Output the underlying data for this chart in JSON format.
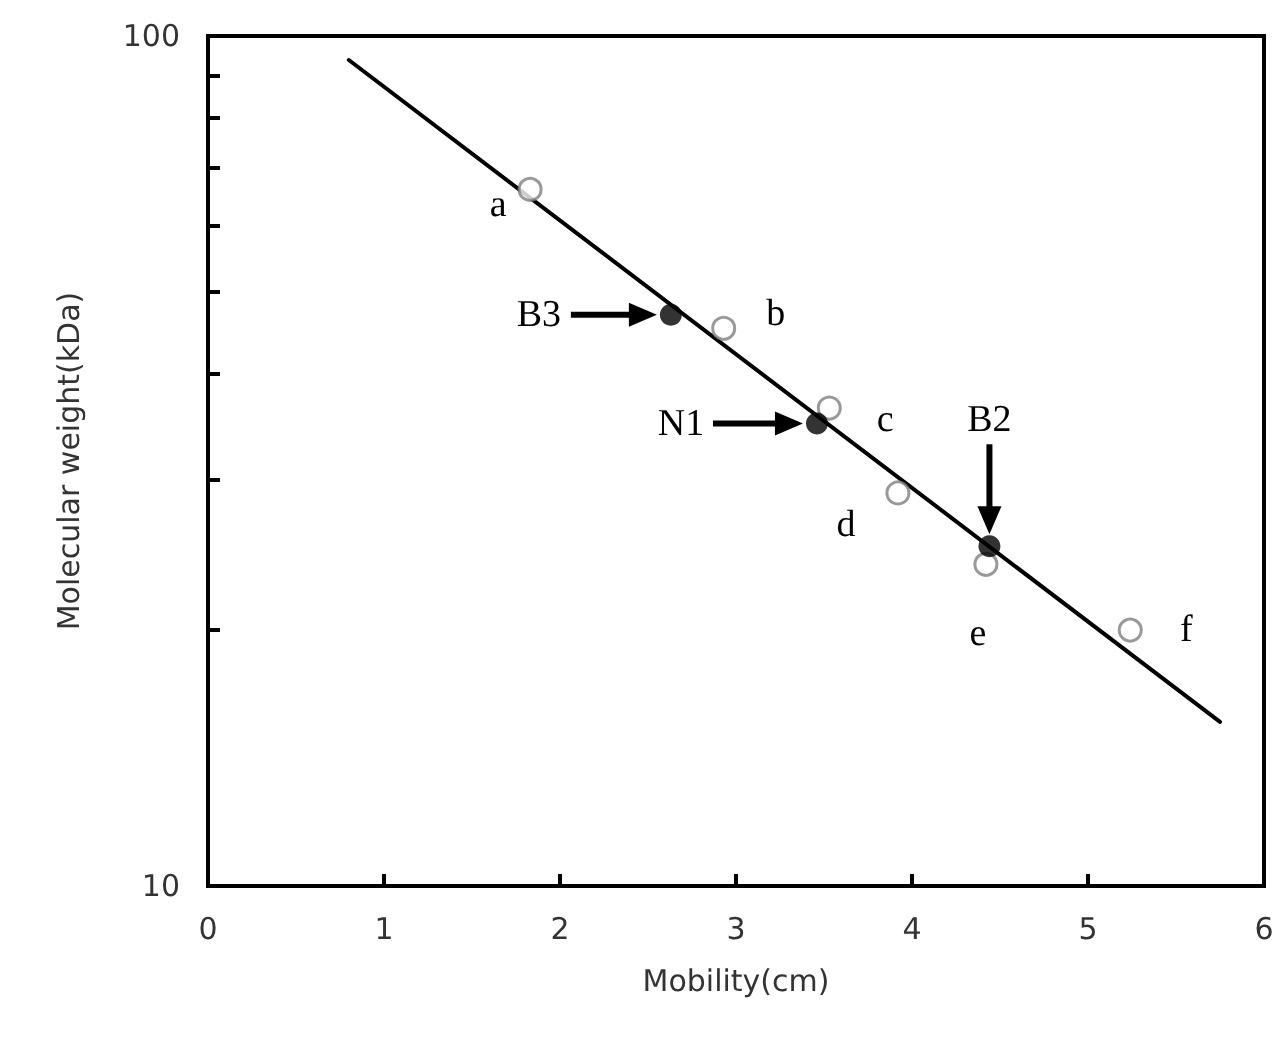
{
  "chart_data": {
    "type": "scatter",
    "xlabel": "Mobility(cm)",
    "ylabel": "Molecular weight(kDa)",
    "xlim": [
      0,
      6
    ],
    "xticks": [
      0,
      1,
      2,
      3,
      4,
      5,
      6
    ],
    "ylim": [
      10,
      100
    ],
    "yticks": [
      10,
      {
        "value": 20,
        "label": null
      },
      {
        "value": 30,
        "label": null
      },
      {
        "value": 40,
        "label": null
      },
      {
        "value": 50,
        "label": null
      },
      {
        "value": 60,
        "label": null
      },
      {
        "value": 70,
        "label": null
      },
      {
        "value": 80,
        "label": null
      },
      {
        "value": 90,
        "label": null
      },
      100
    ],
    "log": "y",
    "grid": false,
    "marker": "circle",
    "series": [
      {
        "type": "line",
        "color": "#000000",
        "marker": "none",
        "x": [
          0.8,
          5.75
        ],
        "values": [
          93.7,
          15.6
        ]
      },
      {
        "color": "#808080",
        "x": [
          1.83,
          2.93,
          3.53,
          3.92,
          4.42,
          5.24
        ],
        "values": [
          66,
          45.3,
          36.5,
          29,
          23.9,
          20
        ]
      },
      {
        "color": "#000000",
        "x": [
          2.63,
          3.46,
          4.44
        ],
        "values": [
          47,
          35,
          25.1
        ]
      }
    ],
    "annotations": [
      {
        "text": "a",
        "x": 1.83,
        "y": 66
      },
      {
        "text": "b",
        "x": 2.93,
        "y": 45.3
      },
      {
        "text": "c",
        "x": 3.53,
        "y": 36.5
      },
      {
        "text": "d",
        "x": 3.92,
        "y": 29
      },
      {
        "text": "e",
        "x": 4.42,
        "y": 23.9
      },
      {
        "text": "f",
        "x": 5.24,
        "y": 20
      },
      {
        "text": "B3",
        "x": 2.63,
        "y": 47
      },
      {
        "text": "N1",
        "x": 3.46,
        "y": 35
      },
      {
        "text": "B2",
        "x": 4.44,
        "y": 25.1
      }
    ]
  }
}
